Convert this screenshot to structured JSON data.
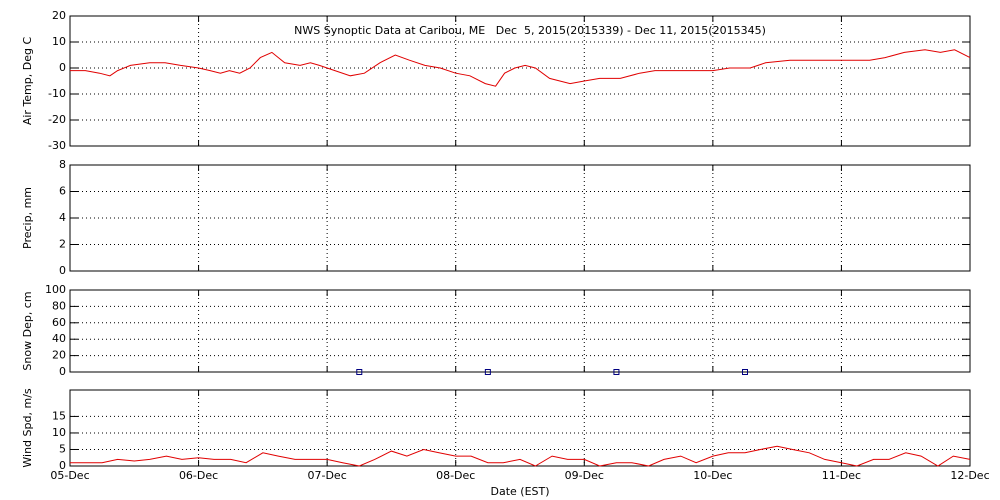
{
  "chart_data": [
    {
      "type": "line",
      "title": "NWS Synoptic Data at Caribou, ME   Dec  5, 2015(2015339) - Dec 11, 2015(2015345)",
      "ylabel": "Air Temp, Deg C",
      "ylim": [
        -30,
        20
      ],
      "yticks": [
        -30,
        -20,
        -10,
        0,
        10,
        20
      ],
      "xlim": [
        0,
        7
      ],
      "xticks": [
        0,
        1,
        2,
        3,
        4,
        5,
        6,
        7
      ],
      "grid": true,
      "series": [
        {
          "color": "#e00000",
          "x": [
            0,
            0.12,
            0.23,
            0.31,
            0.37,
            0.47,
            0.62,
            0.74,
            0.86,
            1.0,
            1.09,
            1.17,
            1.24,
            1.32,
            1.4,
            1.48,
            1.57,
            1.67,
            1.79,
            1.87,
            1.94,
            2.06,
            2.18,
            2.29,
            2.41,
            2.53,
            2.64,
            2.76,
            2.88,
            3.0,
            3.11,
            3.23,
            3.31,
            3.38,
            3.46,
            3.54,
            3.62,
            3.73,
            3.89,
            4.0,
            4.12,
            4.28,
            4.43,
            4.55,
            4.74,
            5.0,
            5.13,
            5.29,
            5.41,
            5.6,
            6.0,
            6.22,
            6.34,
            6.49,
            6.65,
            6.77,
            6.88,
            7.0
          ],
          "values": [
            -1,
            -1,
            -2,
            -3,
            -1,
            1,
            2,
            2,
            1,
            0,
            -1,
            -2,
            -1,
            -2,
            0,
            4,
            6,
            2,
            1,
            2,
            1,
            -1,
            -3,
            -2,
            2,
            5,
            3,
            1,
            0,
            -2,
            -3,
            -6,
            -7,
            -2,
            0,
            1,
            0,
            -4,
            -6,
            -5,
            -4,
            -4,
            -2,
            -1,
            -1,
            -1,
            0,
            0,
            2,
            3,
            3,
            3,
            4,
            6,
            7,
            6,
            7,
            4
          ]
        }
      ]
    },
    {
      "type": "line",
      "ylabel": "Precip, mm",
      "ylim": [
        0,
        8
      ],
      "yticks": [
        0,
        2,
        4,
        6,
        8
      ],
      "xlim": [
        0,
        7
      ],
      "xticks": [
        0,
        1,
        2,
        3,
        4,
        5,
        6,
        7
      ],
      "grid": true,
      "series": []
    },
    {
      "type": "line",
      "ylabel": "Snow Dep, cm",
      "ylim": [
        0,
        100
      ],
      "yticks": [
        0,
        20,
        40,
        60,
        80,
        100
      ],
      "xlim": [
        0,
        7
      ],
      "xticks": [
        0,
        1,
        2,
        3,
        4,
        5,
        6,
        7
      ],
      "grid": true,
      "series": [
        {
          "color": "#000080",
          "marker": "square",
          "x": [
            2.25,
            3.25,
            4.25,
            5.25
          ],
          "values": [
            0,
            0,
            0,
            0
          ]
        }
      ]
    },
    {
      "type": "line",
      "ylabel": "Wind Spd, m/s",
      "xlabel": "Date (EST)",
      "ylim": [
        0,
        23
      ],
      "yticks": [
        0,
        5,
        10,
        15
      ],
      "xlim": [
        0,
        7
      ],
      "grid": true,
      "xticks": [
        {
          "value": 0,
          "label": "05-Dec"
        },
        {
          "value": 1,
          "label": "06-Dec"
        },
        {
          "value": 2,
          "label": "07-Dec"
        },
        {
          "value": 3,
          "label": "08-Dec"
        },
        {
          "value": 4,
          "label": "09-Dec"
        },
        {
          "value": 5,
          "label": "10-Dec"
        },
        {
          "value": 6,
          "label": "11-Dec"
        },
        {
          "value": 7,
          "label": "12-Dec"
        }
      ],
      "series": [
        {
          "color": "#e00000",
          "x": [
            0,
            0.12,
            0.25,
            0.37,
            0.5,
            0.62,
            0.75,
            0.87,
            1.0,
            1.12,
            1.25,
            1.37,
            1.5,
            1.62,
            1.75,
            1.87,
            2.0,
            2.12,
            2.25,
            2.37,
            2.5,
            2.62,
            2.75,
            2.87,
            3.0,
            3.12,
            3.25,
            3.37,
            3.5,
            3.62,
            3.75,
            3.87,
            4.0,
            4.12,
            4.25,
            4.37,
            4.5,
            4.62,
            4.75,
            4.87,
            5.0,
            5.12,
            5.25,
            5.37,
            5.5,
            5.62,
            5.75,
            5.87,
            6.0,
            6.12,
            6.25,
            6.37,
            6.5,
            6.62,
            6.75,
            6.87,
            7.0
          ],
          "values": [
            1,
            1,
            1,
            2,
            1.5,
            2,
            3,
            2,
            2.5,
            2,
            2,
            1,
            4,
            3,
            2,
            2,
            2,
            1,
            0,
            2,
            4.5,
            3,
            5,
            4,
            3,
            3,
            1,
            1,
            2,
            0,
            3,
            2,
            2,
            0,
            1,
            1,
            0,
            2,
            3,
            1,
            3,
            4,
            4,
            5,
            6,
            5,
            4,
            2,
            1,
            0,
            2,
            2,
            4,
            3,
            0,
            3,
            2
          ]
        }
      ]
    }
  ]
}
